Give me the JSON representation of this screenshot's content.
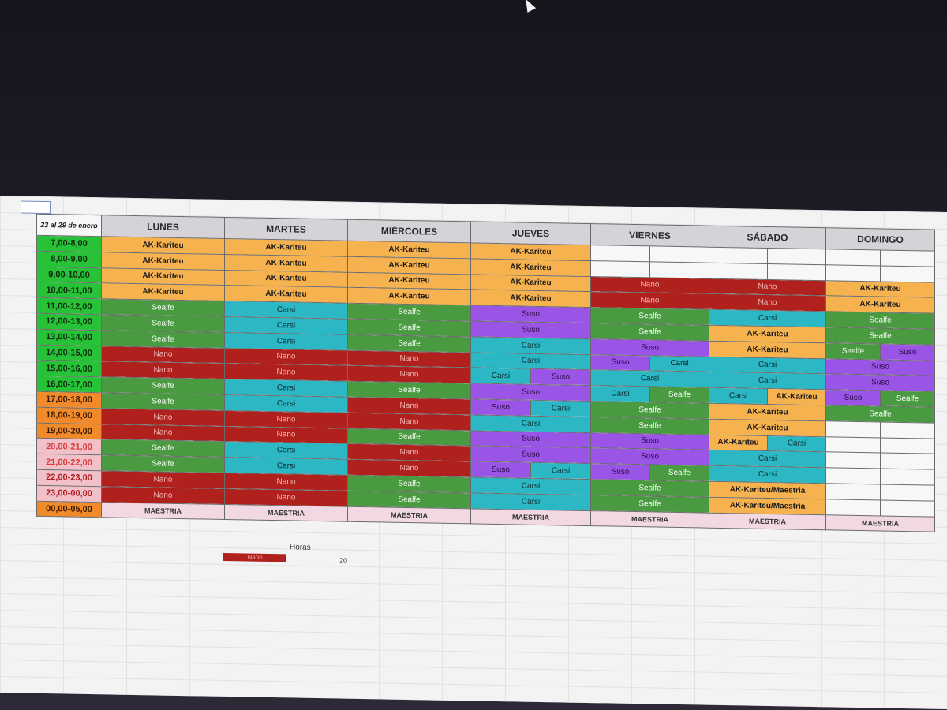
{
  "schedule": {
    "corner_label": "23 al 29 de enero",
    "days": [
      "LUNES",
      "MARTES",
      "MIÉRCOLES",
      "JUEVES",
      "VIERNES",
      "SÁBADO",
      "DOMINGO"
    ],
    "time_slots": [
      "7,00-8,00",
      "8,00-9,00",
      "9,00-10,00",
      "10,00-11,00",
      "11,00-12,00",
      "12,00-13,00",
      "13,00-14,00",
      "14,00-15,00",
      "15,00-16,00",
      "16,00-17,00",
      "17,00-18,00",
      "18,00-19,00",
      "19,00-20,00",
      "20,00-21,00",
      "21,00-22,00",
      "22,00-23,00",
      "23,00-00,00",
      "00,00-05,00"
    ],
    "names": {
      "ak": "AK-Kariteu",
      "sealfe": "Sealfe",
      "carsi": "Carsi",
      "nano": "Nano",
      "suso": "Suso",
      "maestria": "MAESTRIA",
      "ak_maestria": "AK-Kariteu/Maestria"
    }
  },
  "footer": {
    "horas_label": "Horas",
    "legend_name": "Nano",
    "legend_value": "20"
  },
  "colors": {
    "ak": "#f6b24e",
    "sealfe": "#4a9a42",
    "carsi": "#2bb8c4",
    "nano": "#b0201c",
    "suso": "#9a55e6",
    "maestria": "#f2d8e2",
    "time_green": "#27c237",
    "time_orange": "#f08a2a",
    "time_pink": "#f2c0c8"
  }
}
